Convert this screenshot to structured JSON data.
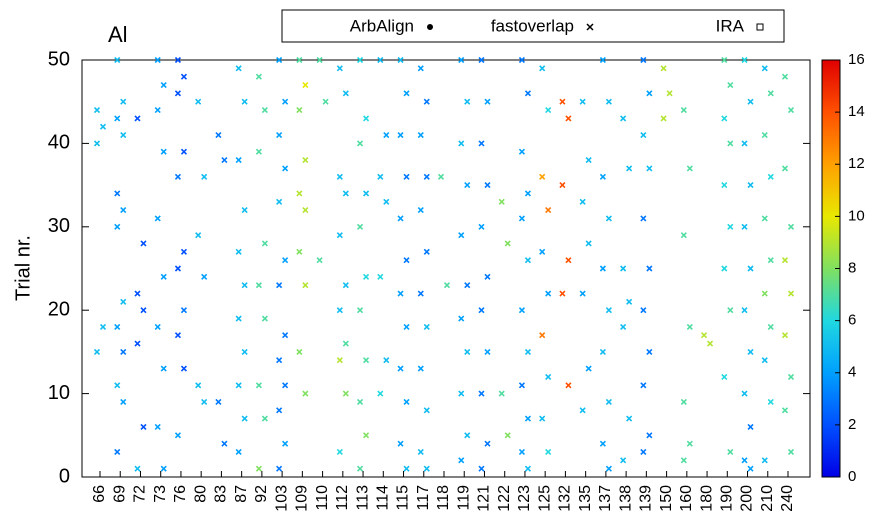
{
  "chart_data": {
    "type": "scatter",
    "title": "Al",
    "ylabel": "Trial nr.",
    "legend": [
      {
        "name": "ArbAlign",
        "marker": "dot"
      },
      {
        "name": "fastoverlap",
        "marker": "x"
      },
      {
        "name": "IRA",
        "marker": "square"
      }
    ],
    "categories": [
      "66",
      "69",
      "72",
      "73",
      "76",
      "80",
      "83",
      "87",
      "92",
      "103",
      "109",
      "110",
      "112",
      "113",
      "114",
      "115",
      "117",
      "118",
      "119",
      "121",
      "122",
      "123",
      "125",
      "132",
      "135",
      "137",
      "138",
      "139",
      "150",
      "160",
      "180",
      "190",
      "200",
      "210",
      "240"
    ],
    "trials": [
      [
        44,
        42,
        40,
        18,
        15
      ],
      [
        50,
        45,
        43,
        41,
        34,
        32,
        30,
        21,
        18,
        15,
        11,
        9,
        3
      ],
      [
        43,
        28,
        22,
        20,
        16,
        6,
        1
      ],
      [
        50,
        47,
        44,
        39,
        31,
        24,
        18,
        13,
        6,
        1
      ],
      [
        50,
        48,
        46,
        39,
        36,
        27,
        25,
        20,
        17,
        13,
        5
      ],
      [
        45,
        36,
        29,
        24,
        11,
        9
      ],
      [
        41,
        38,
        9,
        4
      ],
      [
        49,
        45,
        38,
        32,
        27,
        23,
        19,
        15,
        11,
        7,
        3
      ],
      [
        48,
        44,
        39,
        28,
        23,
        19,
        11,
        7,
        1
      ],
      [
        50,
        45,
        41,
        37,
        33,
        26,
        23,
        17,
        14,
        11,
        8,
        4,
        1
      ],
      [
        50,
        47,
        44,
        38,
        34,
        32,
        27,
        23,
        15,
        10
      ],
      [
        50,
        45,
        26
      ],
      [
        49,
        46,
        36,
        34,
        29,
        23,
        20,
        16,
        14,
        10,
        3
      ],
      [
        50,
        43,
        40,
        34,
        30,
        24,
        20,
        14,
        9,
        5,
        1
      ],
      [
        50,
        41,
        36,
        33,
        24,
        14,
        10
      ],
      [
        50,
        46,
        41,
        36,
        31,
        26,
        22,
        18,
        13,
        9,
        4,
        1
      ],
      [
        49,
        45,
        41,
        36,
        32,
        27,
        22,
        18,
        13,
        8,
        3,
        1
      ],
      [
        36,
        23
      ],
      [
        50,
        45,
        40,
        35,
        29,
        23,
        19,
        15,
        10,
        5,
        2
      ],
      [
        50,
        45,
        40,
        35,
        30,
        24,
        20,
        15,
        10,
        4,
        1
      ],
      [
        33,
        28,
        10,
        5
      ],
      [
        50,
        46,
        39,
        34,
        31,
        26,
        20,
        15,
        11,
        7,
        3,
        1
      ],
      [
        49,
        44,
        36,
        32,
        27,
        22,
        17,
        12,
        7,
        3
      ],
      [
        45,
        43,
        35,
        26,
        22,
        11
      ],
      [
        45,
        38,
        33,
        28,
        22,
        13,
        8
      ],
      [
        50,
        45,
        36,
        31,
        25,
        20,
        15,
        9,
        4,
        1
      ],
      [
        43,
        37,
        25,
        21,
        18,
        7,
        2
      ],
      [
        50,
        46,
        41,
        37,
        31,
        25,
        20,
        15,
        11,
        5,
        3
      ],
      [
        49,
        46,
        43
      ],
      [
        44,
        37,
        29,
        18,
        9,
        4,
        2
      ],
      [
        17,
        16
      ],
      [
        50,
        47,
        43,
        40,
        35,
        30,
        25,
        20,
        12,
        3
      ],
      [
        50,
        45,
        40,
        35,
        30,
        25,
        20,
        15,
        10,
        6,
        2,
        1
      ],
      [
        49,
        46,
        41,
        36,
        31,
        26,
        22,
        18,
        14,
        9,
        2
      ],
      [
        48,
        44,
        37,
        30,
        26,
        22,
        17,
        12,
        8,
        3
      ]
    ],
    "values": [
      [
        5,
        5,
        5,
        5,
        5
      ],
      [
        5,
        5,
        4,
        5,
        3,
        4,
        4,
        5,
        4,
        3,
        5,
        4,
        3
      ],
      [
        2,
        2,
        2,
        2,
        2,
        2,
        5
      ],
      [
        4,
        4,
        4,
        4,
        4,
        4,
        4,
        4,
        4,
        4
      ],
      [
        2,
        2,
        2,
        2,
        3,
        2,
        2,
        3,
        2,
        2,
        4
      ],
      [
        5,
        5,
        5,
        4,
        5,
        5
      ],
      [
        3,
        3,
        3,
        3
      ],
      [
        5,
        5,
        4,
        5,
        5,
        5,
        5,
        5,
        5,
        5,
        4
      ],
      [
        7,
        7,
        7,
        7,
        7,
        7,
        7,
        7,
        8
      ],
      [
        4,
        4,
        4,
        4,
        5,
        4,
        3,
        3,
        3,
        3,
        3,
        4,
        3
      ],
      [
        7,
        10,
        8,
        9,
        9,
        9,
        8,
        9,
        8,
        8
      ],
      [
        7,
        7,
        7
      ],
      [
        5,
        5,
        5,
        5,
        5,
        5,
        5,
        7,
        9,
        8,
        6
      ],
      [
        6,
        6,
        7,
        5,
        7,
        6,
        7,
        7,
        7,
        8,
        7
      ],
      [
        5,
        4,
        5,
        5,
        6,
        5,
        6
      ],
      [
        5,
        4,
        4,
        3,
        4,
        3,
        4,
        4,
        4,
        4,
        4,
        5
      ],
      [
        4,
        3,
        4,
        3,
        4,
        3,
        3,
        5,
        4,
        5,
        5,
        5
      ],
      [
        7,
        7
      ],
      [
        4,
        5,
        5,
        4,
        4,
        3,
        4,
        5,
        5,
        5,
        4
      ],
      [
        3,
        4,
        3,
        3,
        4,
        3,
        3,
        4,
        3,
        3,
        3
      ],
      [
        8,
        8,
        7,
        8
      ],
      [
        3,
        3,
        4,
        4,
        4,
        5,
        4,
        5,
        3,
        4,
        4,
        5
      ],
      [
        5,
        6,
        12,
        13,
        4,
        4,
        13,
        5,
        5,
        6
      ],
      [
        14,
        14,
        14,
        14,
        14,
        14
      ],
      [
        5,
        5,
        5,
        5,
        4,
        4,
        5
      ],
      [
        4,
        5,
        4,
        5,
        4,
        5,
        5,
        5,
        4,
        4
      ],
      [
        5,
        5,
        5,
        5,
        5,
        5,
        5
      ],
      [
        3,
        4,
        5,
        5,
        3,
        3,
        3,
        3,
        3,
        3,
        3
      ],
      [
        9,
        9,
        9
      ],
      [
        7,
        7,
        7,
        7,
        7,
        7,
        7
      ],
      [
        9,
        9
      ],
      [
        7,
        7,
        6,
        7,
        6,
        6,
        6,
        7,
        6,
        7
      ],
      [
        6,
        5,
        5,
        5,
        5,
        5,
        5,
        5,
        5,
        3,
        4,
        4
      ],
      [
        5,
        7,
        7,
        6,
        7,
        7,
        8,
        7,
        5,
        6,
        5
      ],
      [
        7,
        7,
        7,
        7,
        9,
        9,
        9,
        7,
        7,
        7
      ]
    ],
    "ylim": [
      0,
      50
    ],
    "yticks": [
      0,
      10,
      20,
      30,
      40,
      50
    ],
    "clim": [
      0,
      16
    ],
    "cticks": [
      0,
      2,
      4,
      6,
      8,
      10,
      12,
      14,
      16
    ],
    "colormap": [
      "#0000e6",
      "#0050ff",
      "#00a0ff",
      "#20d8e0",
      "#80e060",
      "#e8e800",
      "#ffa000",
      "#ff5000",
      "#e00000"
    ]
  }
}
